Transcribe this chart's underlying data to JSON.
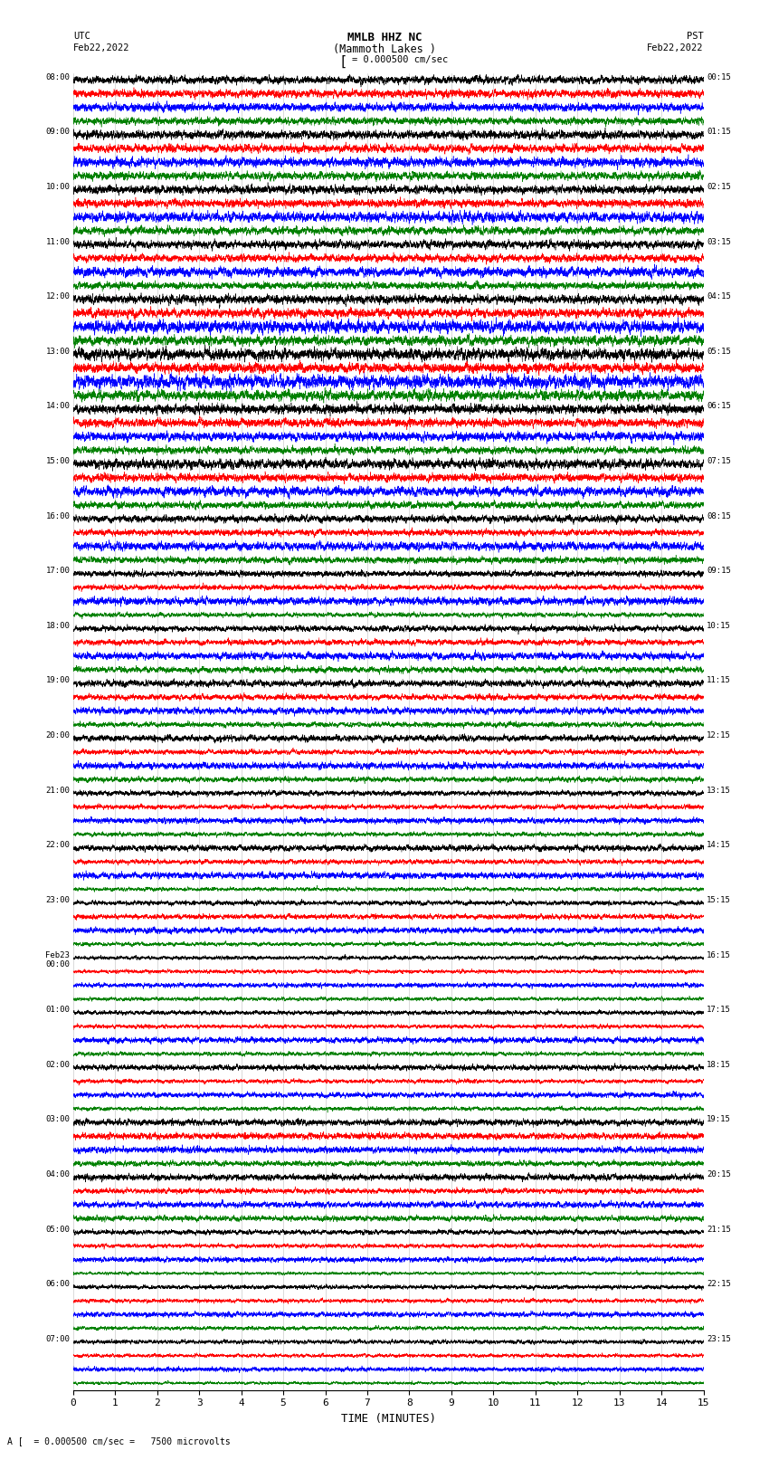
{
  "title_line1": "MMLB HHZ NC",
  "title_line2": "(Mammoth Lakes )",
  "scale_label": "= 0.000500 cm/sec",
  "left_label_top": "UTC",
  "left_label_date": "Feb22,2022",
  "right_label_top": "PST",
  "right_label_date": "Feb22,2022",
  "xlabel": "TIME (MINUTES)",
  "bottom_note": "= 0.000500 cm/sec =   7500 microvolts",
  "bottom_note_prefix": "A",
  "xlim": [
    0,
    15
  ],
  "xticks": [
    0,
    1,
    2,
    3,
    4,
    5,
    6,
    7,
    8,
    9,
    10,
    11,
    12,
    13,
    14,
    15
  ],
  "num_rows": 24,
  "traces_per_row": 4,
  "left_times_utc": [
    "08:00",
    "09:00",
    "10:00",
    "11:00",
    "12:00",
    "13:00",
    "14:00",
    "15:00",
    "16:00",
    "17:00",
    "18:00",
    "19:00",
    "20:00",
    "21:00",
    "22:00",
    "23:00",
    "Feb23\n00:00",
    "01:00",
    "02:00",
    "03:00",
    "04:00",
    "05:00",
    "06:00",
    "07:00"
  ],
  "right_times_pst": [
    "00:15",
    "01:15",
    "02:15",
    "03:15",
    "04:15",
    "05:15",
    "06:15",
    "07:15",
    "08:15",
    "09:15",
    "10:15",
    "11:15",
    "12:15",
    "13:15",
    "14:15",
    "15:15",
    "16:15",
    "17:15",
    "18:15",
    "19:15",
    "20:15",
    "21:15",
    "22:15",
    "23:15"
  ],
  "trace_colors": [
    "black",
    "red",
    "blue",
    "green"
  ],
  "background_color": "white",
  "figure_width": 8.5,
  "figure_height": 16.13,
  "row_amplitudes": [
    0.55,
    0.55,
    0.55,
    0.55,
    0.7,
    0.7,
    0.6,
    0.55,
    0.45,
    0.4,
    0.45,
    0.4,
    0.38,
    0.32,
    0.35,
    0.32,
    0.28,
    0.3,
    0.35,
    0.4,
    0.38,
    0.3,
    0.28,
    0.25
  ]
}
